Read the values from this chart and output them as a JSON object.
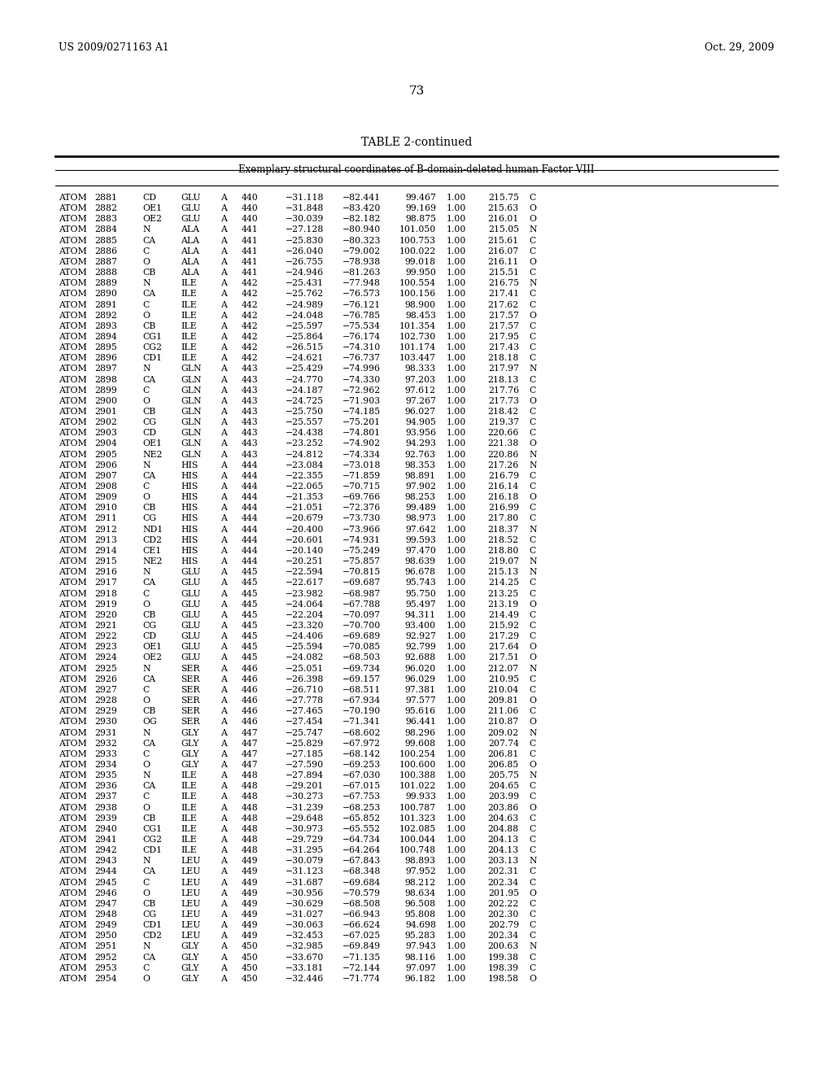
{
  "header_left": "US 2009/0271163 A1",
  "header_right": "Oct. 29, 2009",
  "page_number": "73",
  "table_title": "TABLE 2-continued",
  "table_subtitle": "Exemplary structural coordinates of B-domain-deleted human Factor VIII",
  "rows": [
    [
      "ATOM",
      "2881",
      "CD",
      "GLU",
      "A",
      "440",
      "−31.118",
      "−82.441",
      "99.467",
      "1.00",
      "215.75",
      "C"
    ],
    [
      "ATOM",
      "2882",
      "OE1",
      "GLU",
      "A",
      "440",
      "−31.848",
      "−83.420",
      "99.169",
      "1.00",
      "215.63",
      "O"
    ],
    [
      "ATOM",
      "2883",
      "OE2",
      "GLU",
      "A",
      "440",
      "−30.039",
      "−82.182",
      "98.875",
      "1.00",
      "216.01",
      "O"
    ],
    [
      "ATOM",
      "2884",
      "N",
      "ALA",
      "A",
      "441",
      "−27.128",
      "−80.940",
      "101.050",
      "1.00",
      "215.05",
      "N"
    ],
    [
      "ATOM",
      "2885",
      "CA",
      "ALA",
      "A",
      "441",
      "−25.830",
      "−80.323",
      "100.753",
      "1.00",
      "215.61",
      "C"
    ],
    [
      "ATOM",
      "2886",
      "C",
      "ALA",
      "A",
      "441",
      "−26.040",
      "−79.002",
      "100.022",
      "1.00",
      "216.07",
      "C"
    ],
    [
      "ATOM",
      "2887",
      "O",
      "ALA",
      "A",
      "441",
      "−26.755",
      "−78.938",
      "99.018",
      "1.00",
      "216.11",
      "O"
    ],
    [
      "ATOM",
      "2888",
      "CB",
      "ALA",
      "A",
      "441",
      "−24.946",
      "−81.263",
      "99.950",
      "1.00",
      "215.51",
      "C"
    ],
    [
      "ATOM",
      "2889",
      "N",
      "ILE",
      "A",
      "442",
      "−25.431",
      "−77.948",
      "100.554",
      "1.00",
      "216.75",
      "N"
    ],
    [
      "ATOM",
      "2890",
      "CA",
      "ILE",
      "A",
      "442",
      "−25.762",
      "−76.573",
      "100.156",
      "1.00",
      "217.41",
      "C"
    ],
    [
      "ATOM",
      "2891",
      "C",
      "ILE",
      "A",
      "442",
      "−24.989",
      "−76.121",
      "98.900",
      "1.00",
      "217.62",
      "C"
    ],
    [
      "ATOM",
      "2892",
      "O",
      "ILE",
      "A",
      "442",
      "−24.048",
      "−76.785",
      "98.453",
      "1.00",
      "217.57",
      "O"
    ],
    [
      "ATOM",
      "2893",
      "CB",
      "ILE",
      "A",
      "442",
      "−25.597",
      "−75.534",
      "101.354",
      "1.00",
      "217.57",
      "C"
    ],
    [
      "ATOM",
      "2894",
      "CG1",
      "ILE",
      "A",
      "442",
      "−25.864",
      "−76.174",
      "102.730",
      "1.00",
      "217.95",
      "C"
    ],
    [
      "ATOM",
      "2895",
      "CG2",
      "ILE",
      "A",
      "442",
      "−26.515",
      "−74.310",
      "101.174",
      "1.00",
      "217.43",
      "C"
    ],
    [
      "ATOM",
      "2896",
      "CD1",
      "ILE",
      "A",
      "442",
      "−24.621",
      "−76.737",
      "103.447",
      "1.00",
      "218.18",
      "C"
    ],
    [
      "ATOM",
      "2897",
      "N",
      "GLN",
      "A",
      "443",
      "−25.429",
      "−74.996",
      "98.333",
      "1.00",
      "217.97",
      "N"
    ],
    [
      "ATOM",
      "2898",
      "CA",
      "GLN",
      "A",
      "443",
      "−24.770",
      "−74.330",
      "97.203",
      "1.00",
      "218.13",
      "C"
    ],
    [
      "ATOM",
      "2899",
      "C",
      "GLN",
      "A",
      "443",
      "−24.187",
      "−72.962",
      "97.612",
      "1.00",
      "217.76",
      "C"
    ],
    [
      "ATOM",
      "2900",
      "O",
      "GLN",
      "A",
      "443",
      "−24.725",
      "−71.903",
      "97.267",
      "1.00",
      "217.73",
      "O"
    ],
    [
      "ATOM",
      "2901",
      "CB",
      "GLN",
      "A",
      "443",
      "−25.750",
      "−74.185",
      "96.027",
      "1.00",
      "218.42",
      "C"
    ],
    [
      "ATOM",
      "2902",
      "CG",
      "GLN",
      "A",
      "443",
      "−25.557",
      "−75.201",
      "94.905",
      "1.00",
      "219.37",
      "C"
    ],
    [
      "ATOM",
      "2903",
      "CD",
      "GLN",
      "A",
      "443",
      "−24.438",
      "−74.801",
      "93.956",
      "1.00",
      "220.66",
      "C"
    ],
    [
      "ATOM",
      "2904",
      "OE1",
      "GLN",
      "A",
      "443",
      "−23.252",
      "−74.902",
      "94.293",
      "1.00",
      "221.38",
      "O"
    ],
    [
      "ATOM",
      "2905",
      "NE2",
      "GLN",
      "A",
      "443",
      "−24.812",
      "−74.334",
      "92.763",
      "1.00",
      "220.86",
      "N"
    ],
    [
      "ATOM",
      "2906",
      "N",
      "HIS",
      "A",
      "444",
      "−23.084",
      "−73.018",
      "98.353",
      "1.00",
      "217.26",
      "N"
    ],
    [
      "ATOM",
      "2907",
      "CA",
      "HIS",
      "A",
      "444",
      "−22.355",
      "−71.859",
      "98.891",
      "1.00",
      "216.79",
      "C"
    ],
    [
      "ATOM",
      "2908",
      "C",
      "HIS",
      "A",
      "444",
      "−22.065",
      "−70.715",
      "97.902",
      "1.00",
      "216.14",
      "C"
    ],
    [
      "ATOM",
      "2909",
      "O",
      "HIS",
      "A",
      "444",
      "−21.353",
      "−69.766",
      "98.253",
      "1.00",
      "216.18",
      "O"
    ],
    [
      "ATOM",
      "2910",
      "CB",
      "HIS",
      "A",
      "444",
      "−21.051",
      "−72.376",
      "99.489",
      "1.00",
      "216.99",
      "C"
    ],
    [
      "ATOM",
      "2911",
      "CG",
      "HIS",
      "A",
      "444",
      "−20.679",
      "−73.730",
      "98.973",
      "1.00",
      "217.80",
      "C"
    ],
    [
      "ATOM",
      "2912",
      "ND1",
      "HIS",
      "A",
      "444",
      "−20.400",
      "−73.966",
      "97.642",
      "1.00",
      "218.37",
      "N"
    ],
    [
      "ATOM",
      "2913",
      "CD2",
      "HIS",
      "A",
      "444",
      "−20.601",
      "−74.931",
      "99.593",
      "1.00",
      "218.52",
      "C"
    ],
    [
      "ATOM",
      "2914",
      "CE1",
      "HIS",
      "A",
      "444",
      "−20.140",
      "−75.249",
      "97.470",
      "1.00",
      "218.80",
      "C"
    ],
    [
      "ATOM",
      "2915",
      "NE2",
      "HIS",
      "A",
      "444",
      "−20.251",
      "−75.857",
      "98.639",
      "1.00",
      "219.07",
      "N"
    ],
    [
      "ATOM",
      "2916",
      "N",
      "GLU",
      "A",
      "445",
      "−22.594",
      "−70.815",
      "96.678",
      "1.00",
      "215.13",
      "N"
    ],
    [
      "ATOM",
      "2917",
      "CA",
      "GLU",
      "A",
      "445",
      "−22.617",
      "−69.687",
      "95.743",
      "1.00",
      "214.25",
      "C"
    ],
    [
      "ATOM",
      "2918",
      "C",
      "GLU",
      "A",
      "445",
      "−23.982",
      "−68.987",
      "95.750",
      "1.00",
      "213.25",
      "C"
    ],
    [
      "ATOM",
      "2919",
      "O",
      "GLU",
      "A",
      "445",
      "−24.064",
      "−67.788",
      "95.497",
      "1.00",
      "213.19",
      "O"
    ],
    [
      "ATOM",
      "2920",
      "CB",
      "GLU",
      "A",
      "445",
      "−22.204",
      "−70.097",
      "94.311",
      "1.00",
      "214.49",
      "C"
    ],
    [
      "ATOM",
      "2921",
      "CG",
      "GLU",
      "A",
      "445",
      "−23.320",
      "−70.700",
      "93.400",
      "1.00",
      "215.92",
      "C"
    ],
    [
      "ATOM",
      "2922",
      "CD",
      "GLU",
      "A",
      "445",
      "−24.406",
      "−69.689",
      "92.927",
      "1.00",
      "217.29",
      "C"
    ],
    [
      "ATOM",
      "2923",
      "OE1",
      "GLU",
      "A",
      "445",
      "−25.594",
      "−70.085",
      "92.799",
      "1.00",
      "217.64",
      "O"
    ],
    [
      "ATOM",
      "2924",
      "OE2",
      "GLU",
      "A",
      "445",
      "−24.082",
      "−68.503",
      "92.688",
      "1.00",
      "217.51",
      "O"
    ],
    [
      "ATOM",
      "2925",
      "N",
      "SER",
      "A",
      "446",
      "−25.051",
      "−69.734",
      "96.020",
      "1.00",
      "212.07",
      "N"
    ],
    [
      "ATOM",
      "2926",
      "CA",
      "SER",
      "A",
      "446",
      "−26.398",
      "−69.157",
      "96.029",
      "1.00",
      "210.95",
      "C"
    ],
    [
      "ATOM",
      "2927",
      "C",
      "SER",
      "A",
      "446",
      "−26.710",
      "−68.511",
      "97.381",
      "1.00",
      "210.04",
      "C"
    ],
    [
      "ATOM",
      "2928",
      "O",
      "SER",
      "A",
      "446",
      "−27.778",
      "−67.934",
      "97.577",
      "1.00",
      "209.81",
      "O"
    ],
    [
      "ATOM",
      "2929",
      "CB",
      "SER",
      "A",
      "446",
      "−27.465",
      "−70.190",
      "95.616",
      "1.00",
      "211.06",
      "C"
    ],
    [
      "ATOM",
      "2930",
      "OG",
      "SER",
      "A",
      "446",
      "−27.454",
      "−71.341",
      "96.441",
      "1.00",
      "210.87",
      "O"
    ],
    [
      "ATOM",
      "2931",
      "N",
      "GLY",
      "A",
      "447",
      "−25.747",
      "−68.602",
      "98.296",
      "1.00",
      "209.02",
      "N"
    ],
    [
      "ATOM",
      "2932",
      "CA",
      "GLY",
      "A",
      "447",
      "−25.829",
      "−67.972",
      "99.608",
      "1.00",
      "207.74",
      "C"
    ],
    [
      "ATOM",
      "2933",
      "C",
      "GLY",
      "A",
      "447",
      "−27.185",
      "−68.142",
      "100.254",
      "1.00",
      "206.81",
      "C"
    ],
    [
      "ATOM",
      "2934",
      "O",
      "GLY",
      "A",
      "447",
      "−27.590",
      "−69.253",
      "100.600",
      "1.00",
      "206.85",
      "O"
    ],
    [
      "ATOM",
      "2935",
      "N",
      "ILE",
      "A",
      "448",
      "−27.894",
      "−67.030",
      "100.388",
      "1.00",
      "205.75",
      "N"
    ],
    [
      "ATOM",
      "2936",
      "CA",
      "ILE",
      "A",
      "448",
      "−29.201",
      "−67.015",
      "101.022",
      "1.00",
      "204.65",
      "C"
    ],
    [
      "ATOM",
      "2937",
      "C",
      "ILE",
      "A",
      "448",
      "−30.273",
      "−67.753",
      "99.933",
      "1.00",
      "203.99",
      "C"
    ],
    [
      "ATOM",
      "2938",
      "O",
      "ILE",
      "A",
      "448",
      "−31.239",
      "−68.253",
      "100.787",
      "1.00",
      "203.86",
      "O"
    ],
    [
      "ATOM",
      "2939",
      "CB",
      "ILE",
      "A",
      "448",
      "−29.648",
      "−65.852",
      "101.323",
      "1.00",
      "204.63",
      "C"
    ],
    [
      "ATOM",
      "2940",
      "CG1",
      "ILE",
      "A",
      "448",
      "−30.973",
      "−65.552",
      "102.085",
      "1.00",
      "204.88",
      "C"
    ],
    [
      "ATOM",
      "2941",
      "CG2",
      "ILE",
      "A",
      "448",
      "−29.729",
      "−64.734",
      "100.044",
      "1.00",
      "204.13",
      "C"
    ],
    [
      "ATOM",
      "2942",
      "CD1",
      "ILE",
      "A",
      "448",
      "−31.295",
      "−64.264",
      "100.748",
      "1.00",
      "204.13",
      "C"
    ],
    [
      "ATOM",
      "2943",
      "N",
      "LEU",
      "A",
      "449",
      "−30.079",
      "−67.843",
      "98.893",
      "1.00",
      "203.13",
      "N"
    ],
    [
      "ATOM",
      "2944",
      "CA",
      "LEU",
      "A",
      "449",
      "−31.123",
      "−68.348",
      "97.952",
      "1.00",
      "202.31",
      "C"
    ],
    [
      "ATOM",
      "2945",
      "C",
      "LEU",
      "A",
      "449",
      "−31.687",
      "−69.684",
      "98.212",
      "1.00",
      "202.34",
      "C"
    ],
    [
      "ATOM",
      "2946",
      "O",
      "LEU",
      "A",
      "449",
      "−30.956",
      "−70.579",
      "98.634",
      "1.00",
      "201.95",
      "O"
    ],
    [
      "ATOM",
      "2947",
      "CB",
      "LEU",
      "A",
      "449",
      "−30.629",
      "−68.508",
      "96.508",
      "1.00",
      "202.22",
      "C"
    ],
    [
      "ATOM",
      "2948",
      "CG",
      "LEU",
      "A",
      "449",
      "−31.027",
      "−66.943",
      "95.808",
      "1.00",
      "202.30",
      "C"
    ],
    [
      "ATOM",
      "2949",
      "CD1",
      "LEU",
      "A",
      "449",
      "−30.063",
      "−66.624",
      "94.698",
      "1.00",
      "202.79",
      "C"
    ],
    [
      "ATOM",
      "2950",
      "CD2",
      "LEU",
      "A",
      "449",
      "−32.453",
      "−67.025",
      "95.283",
      "1.00",
      "202.34",
      "C"
    ],
    [
      "ATOM",
      "2951",
      "N",
      "GLY",
      "A",
      "450",
      "−32.985",
      "−69.849",
      "97.943",
      "1.00",
      "200.63",
      "N"
    ],
    [
      "ATOM",
      "2952",
      "CA",
      "GLY",
      "A",
      "450",
      "−33.670",
      "−71.135",
      "98.116",
      "1.00",
      "199.38",
      "C"
    ],
    [
      "ATOM",
      "2953",
      "C",
      "GLY",
      "A",
      "450",
      "−33.181",
      "−72.144",
      "97.097",
      "1.00",
      "198.39",
      "C"
    ],
    [
      "ATOM",
      "2954",
      "O",
      "GLY",
      "A",
      "450",
      "−32.446",
      "−71.774",
      "96.182",
      "1.00",
      "198.58",
      "O"
    ]
  ]
}
